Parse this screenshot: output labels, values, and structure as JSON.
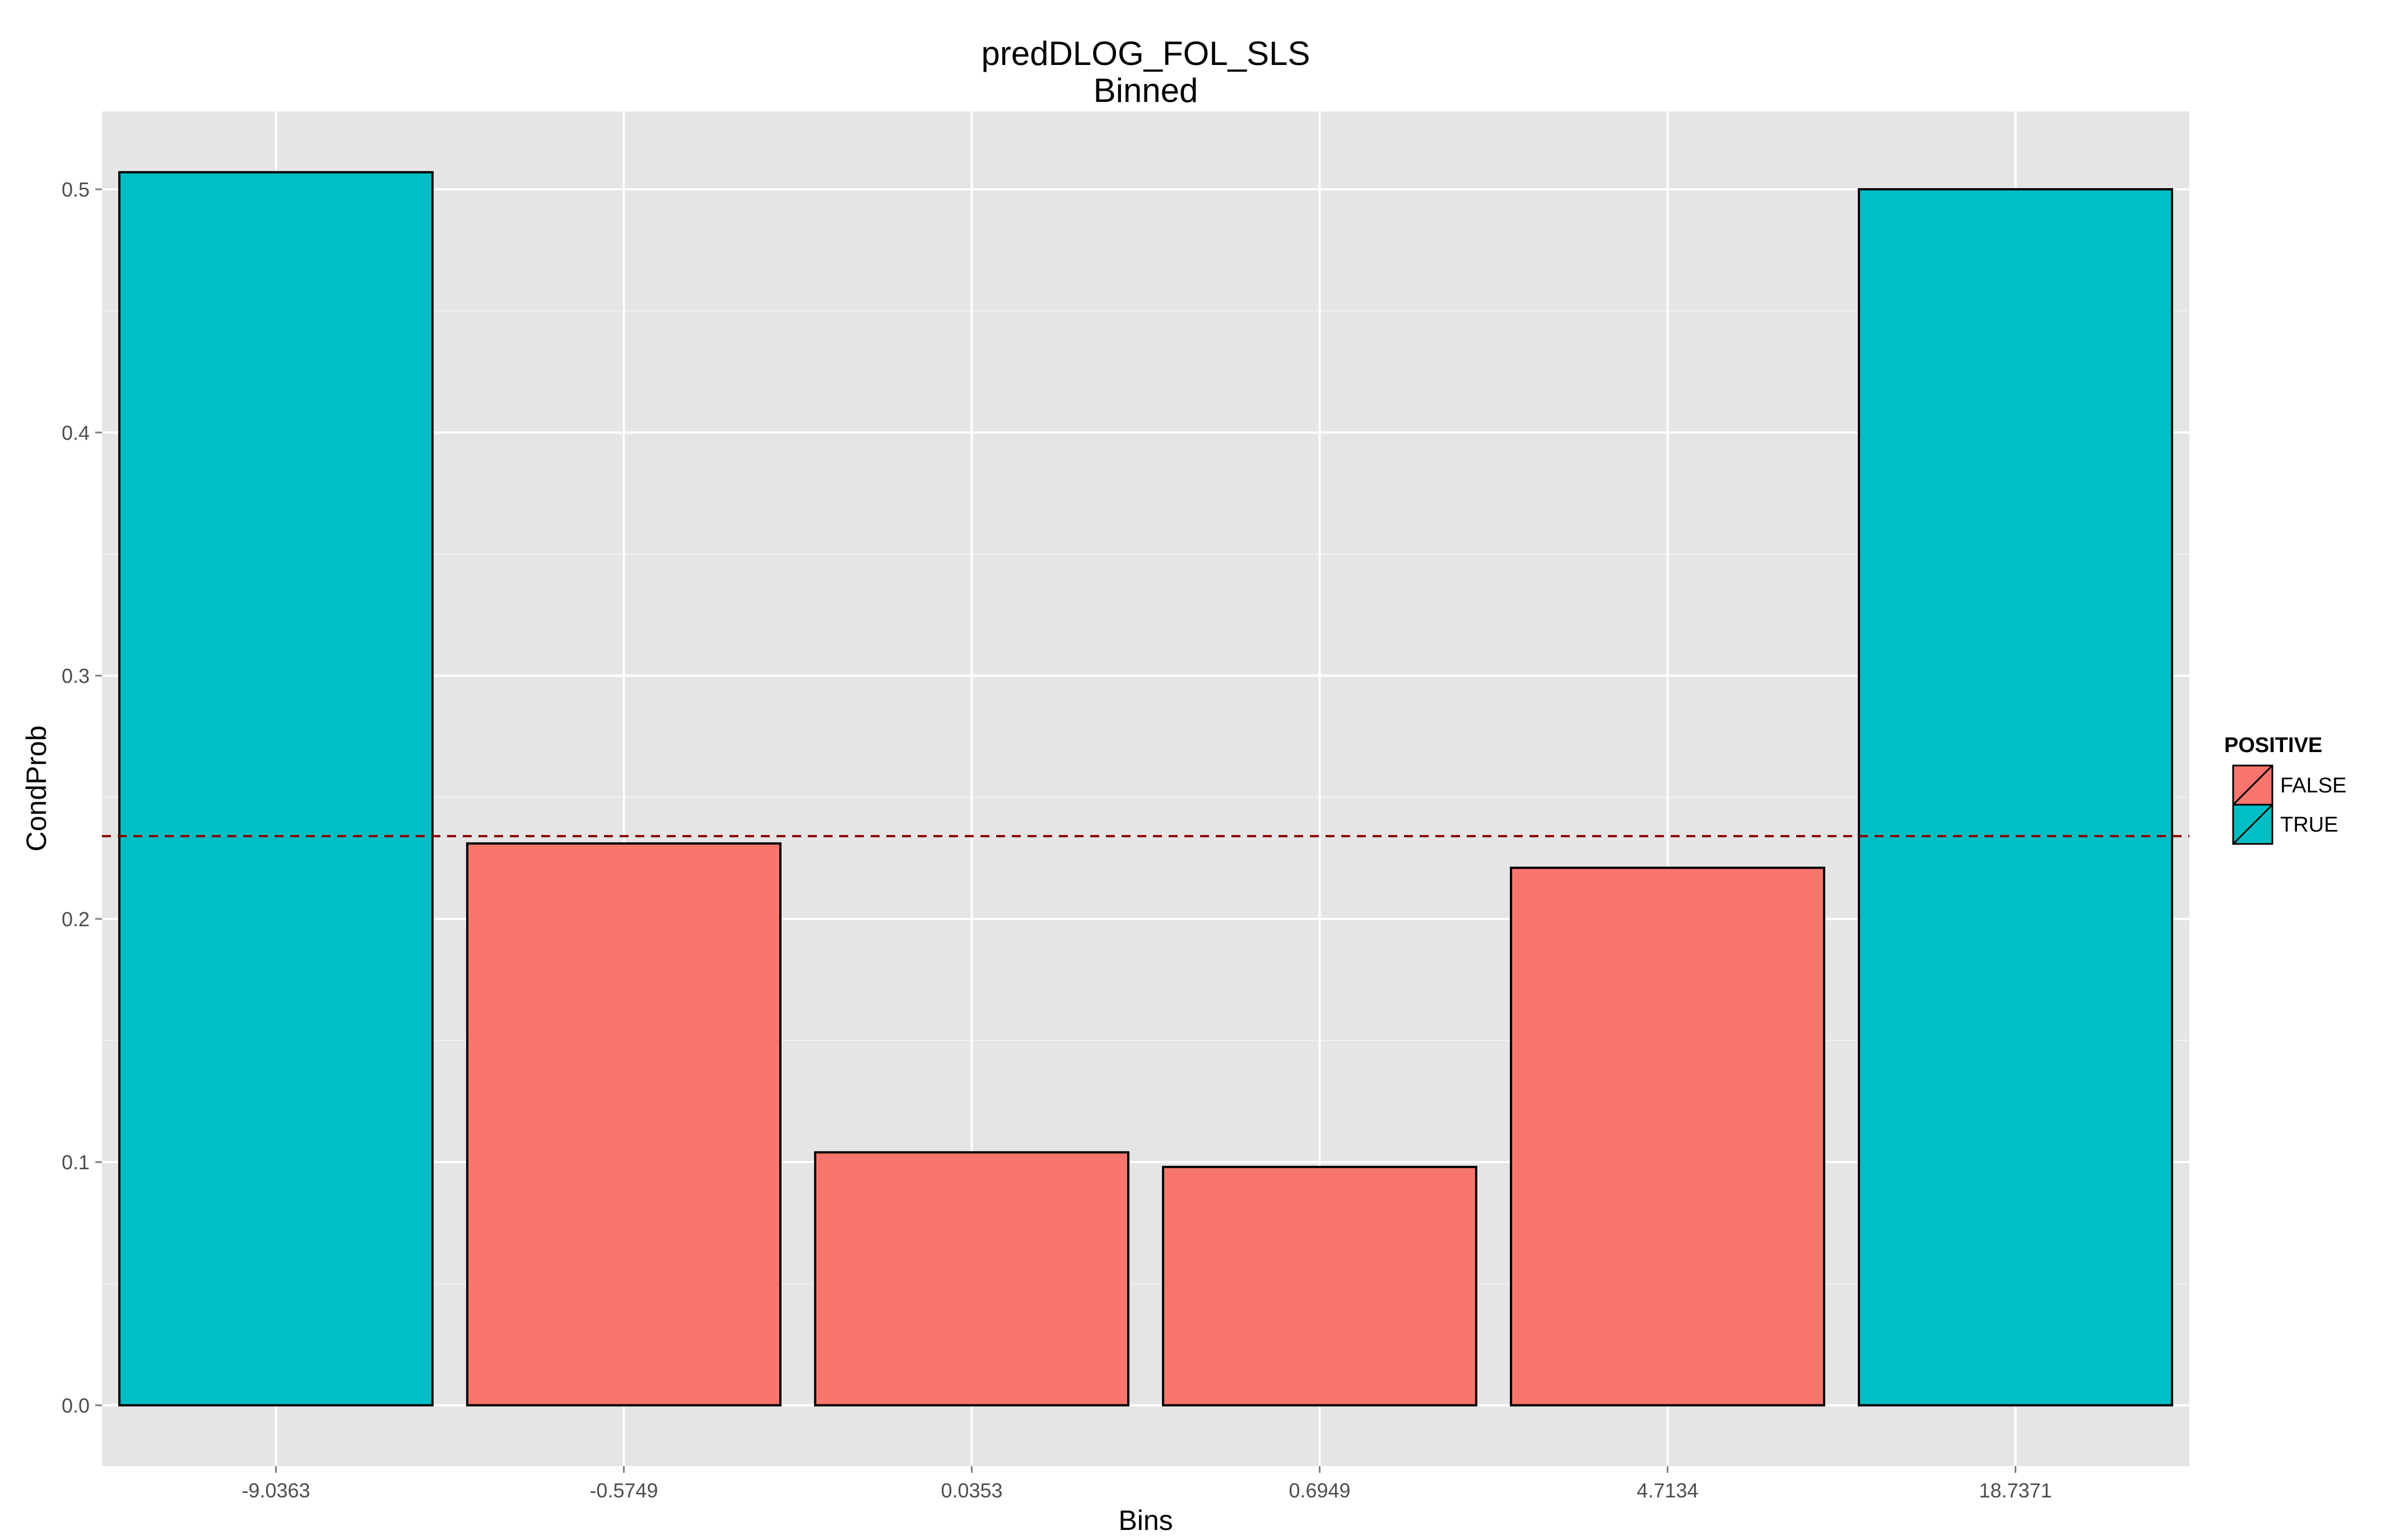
{
  "chart_data": {
    "type": "bar",
    "title": "predDLOG_FOL_SLS",
    "subtitle": "Binned",
    "xlabel": "Bins",
    "ylabel": "CondProb",
    "categories": [
      "-9.0363",
      "-0.5749",
      "0.0353",
      "0.6949",
      "4.7134",
      "18.7371"
    ],
    "values": [
      0.507,
      0.231,
      0.104,
      0.098,
      0.221,
      0.5
    ],
    "positive": [
      "TRUE",
      "FALSE",
      "FALSE",
      "FALSE",
      "FALSE",
      "TRUE"
    ],
    "ylim": [
      -0.025,
      0.532
    ],
    "yticks": [
      0.0,
      0.1,
      0.2,
      0.3,
      0.4,
      0.5
    ],
    "ytick_labels": [
      "0.0",
      "0.1",
      "0.2",
      "0.3",
      "0.4",
      "0.5"
    ],
    "reference_line": {
      "y": 0.234,
      "style": "dashed",
      "color": "#8b0000"
    },
    "grid": true,
    "legend": {
      "title": "POSITIVE",
      "placement": "right",
      "entries": [
        {
          "label": "FALSE",
          "color": "#f8766d"
        },
        {
          "label": "TRUE",
          "color": "#00bfc4"
        }
      ]
    },
    "colors": {
      "FALSE": "#f8766d",
      "TRUE": "#00bfc4",
      "panel": "#e5e5e5",
      "grid_major": "#ffffff",
      "grid_minor": "#f2f2f2"
    }
  }
}
